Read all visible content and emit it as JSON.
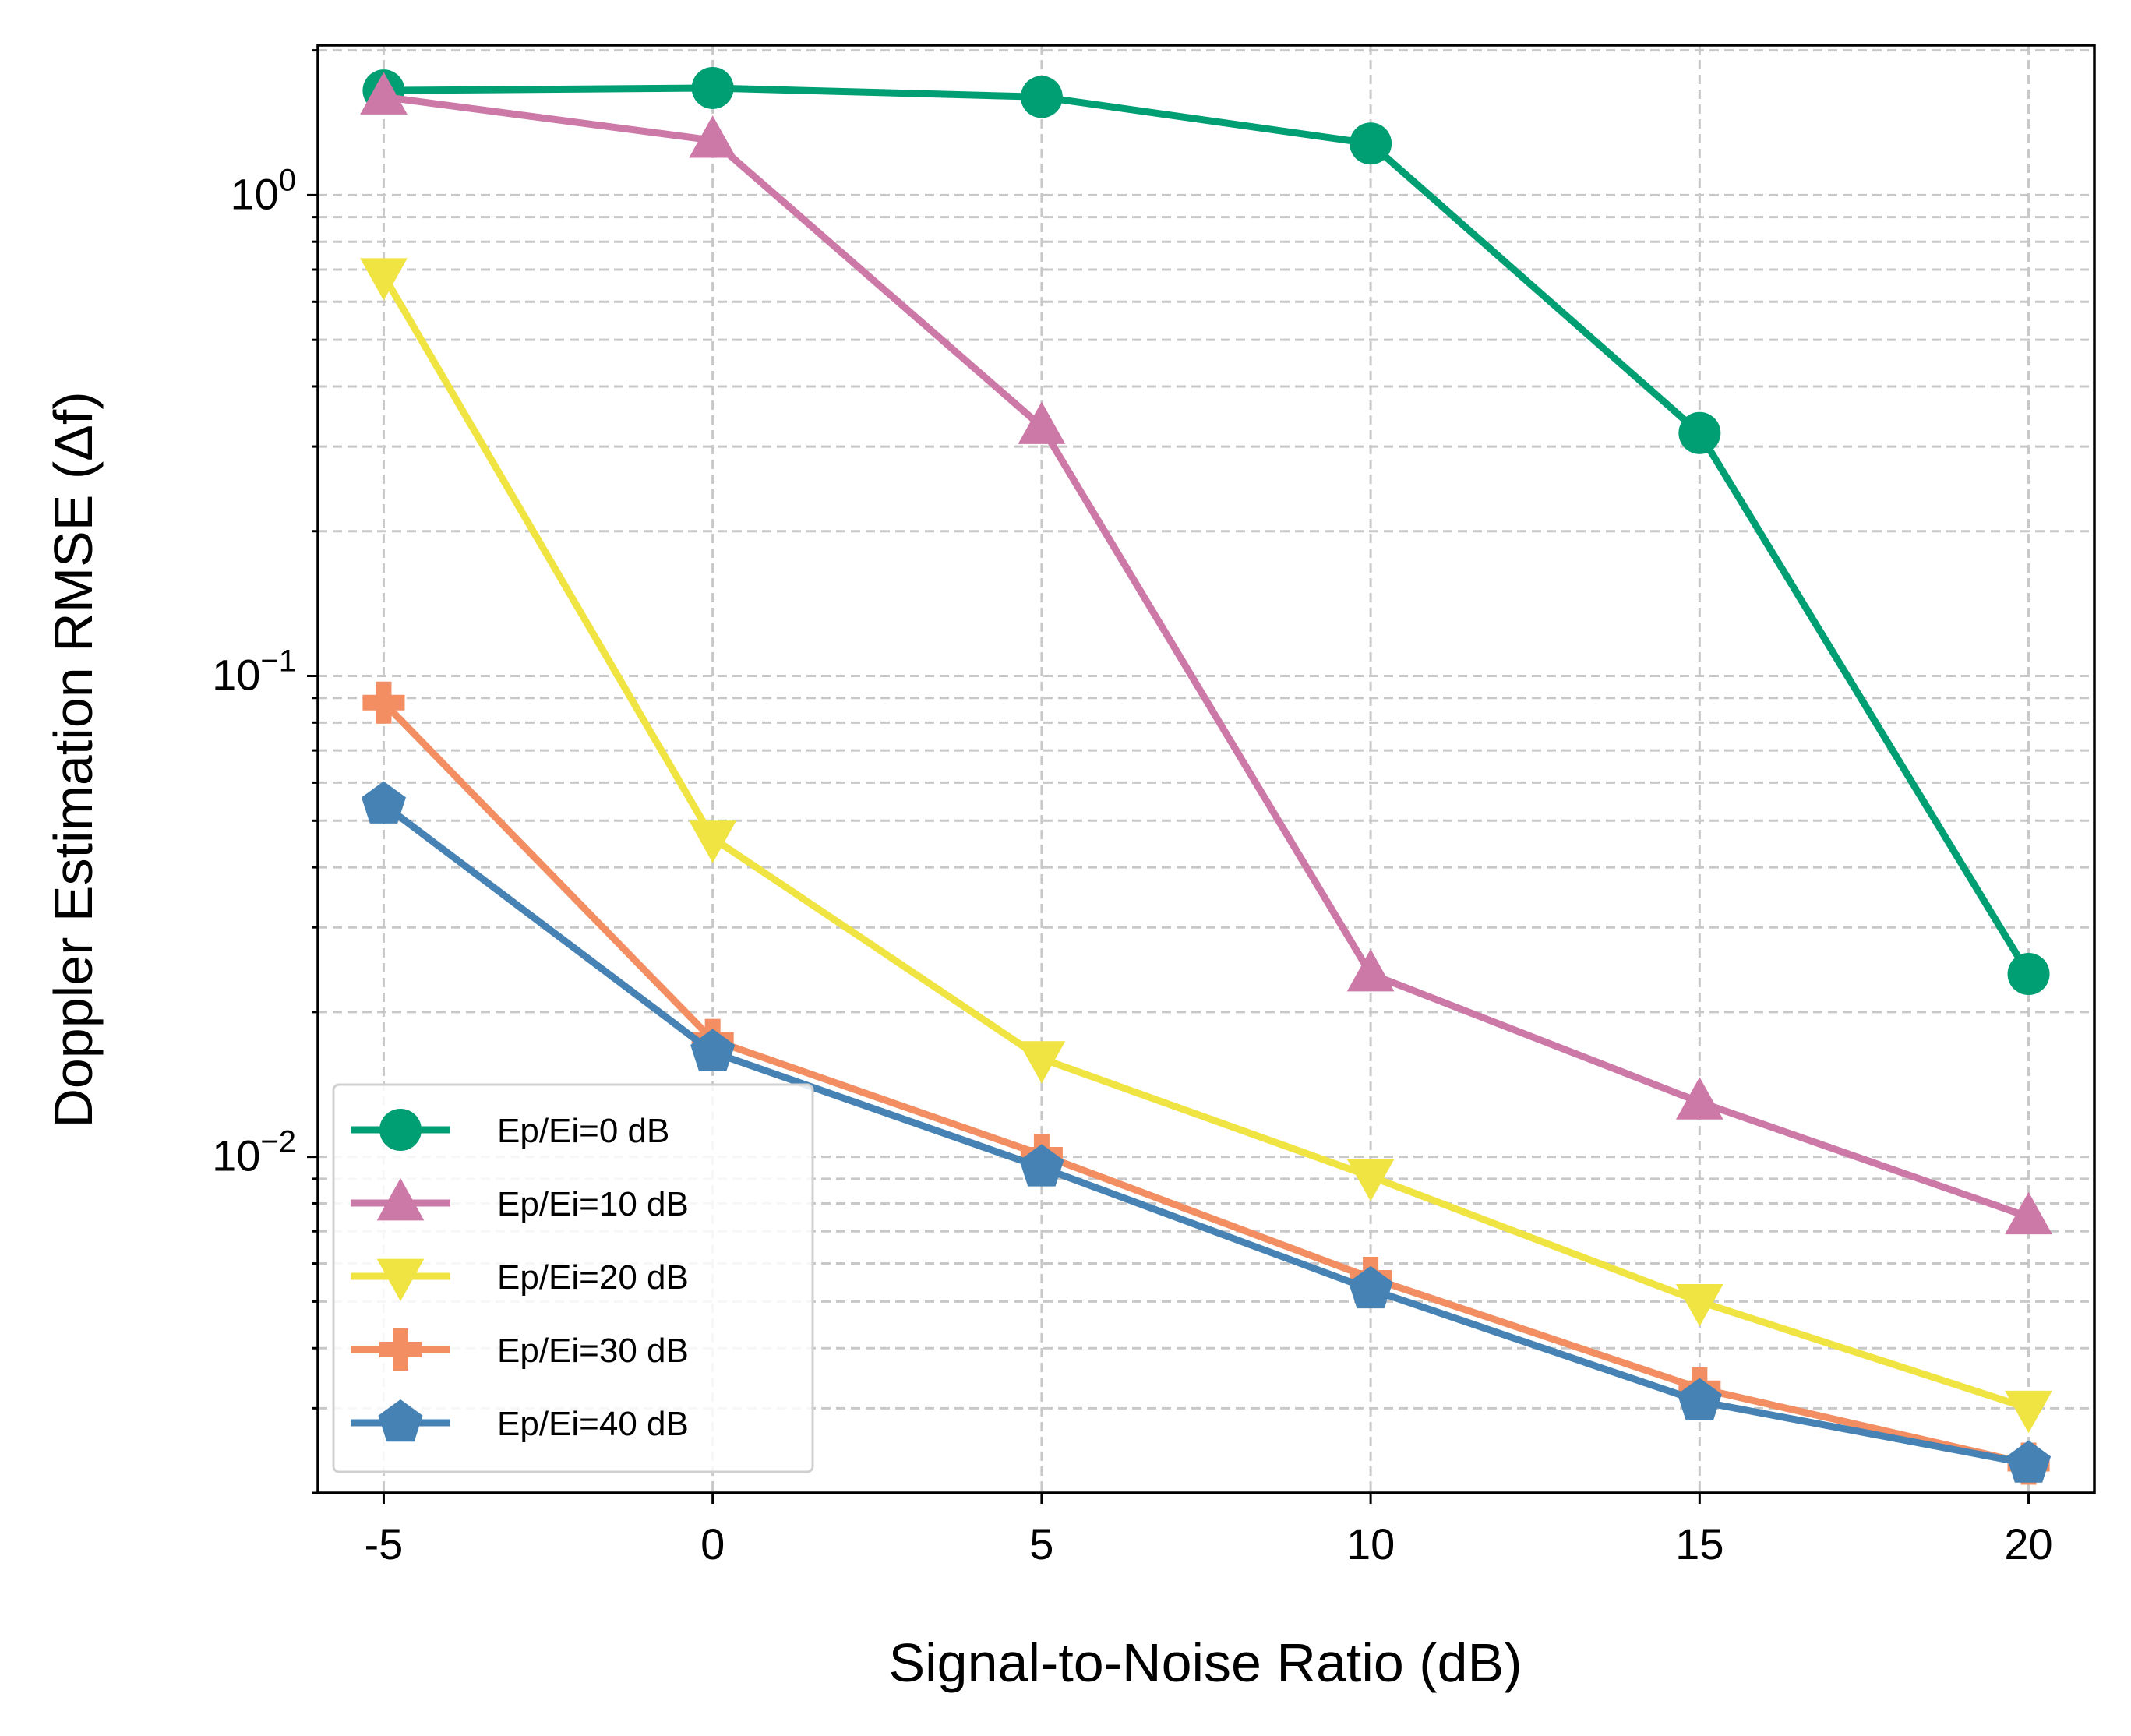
{
  "chart_data": {
    "type": "line",
    "title": "",
    "xlabel": "Signal-to-Noise Ratio (dB)",
    "ylabel": "Doppler Estimation RMSE (Δf)",
    "x": [
      -5,
      0,
      5,
      10,
      15,
      20
    ],
    "x_tick_labels": [
      "-5",
      "0",
      "5",
      "10",
      "15",
      "20"
    ],
    "xlim": [
      -6,
      21
    ],
    "yscale": "log",
    "ylim": [
      0.002,
      2.05
    ],
    "y_ticks": [
      {
        "value": 1,
        "base": "10",
        "exp": "0"
      },
      {
        "value": 0.1,
        "base": "10",
        "exp": "−1"
      },
      {
        "value": 0.01,
        "base": "10",
        "exp": "−2"
      }
    ],
    "grid": true,
    "legend_position": "lower-left",
    "series": [
      {
        "name": "Ep/Ei=0 dB",
        "color": "#009E73",
        "marker": "circle",
        "values": [
          1.65,
          1.67,
          1.6,
          1.28,
          0.32,
          0.024
        ]
      },
      {
        "name": "Ep/Ei=10 dB",
        "color": "#CC79A7",
        "marker": "triangle-up",
        "values": [
          1.6,
          1.3,
          0.33,
          0.024,
          0.013,
          0.0075
        ]
      },
      {
        "name": "Ep/Ei=20 dB",
        "color": "#F0E442",
        "marker": "triangle-down",
        "values": [
          0.68,
          0.046,
          0.016,
          0.0091,
          0.005,
          0.003
        ]
      },
      {
        "name": "Ep/Ei=30 dB",
        "color": "#F28E62",
        "marker": "plus",
        "values": [
          0.088,
          0.0175,
          0.0101,
          0.0056,
          0.0033,
          0.0023
        ]
      },
      {
        "name": "Ep/Ei=40 dB",
        "color": "#4682B4",
        "marker": "pentagon",
        "values": [
          0.054,
          0.0165,
          0.0095,
          0.0053,
          0.0031,
          0.0023
        ]
      }
    ]
  }
}
